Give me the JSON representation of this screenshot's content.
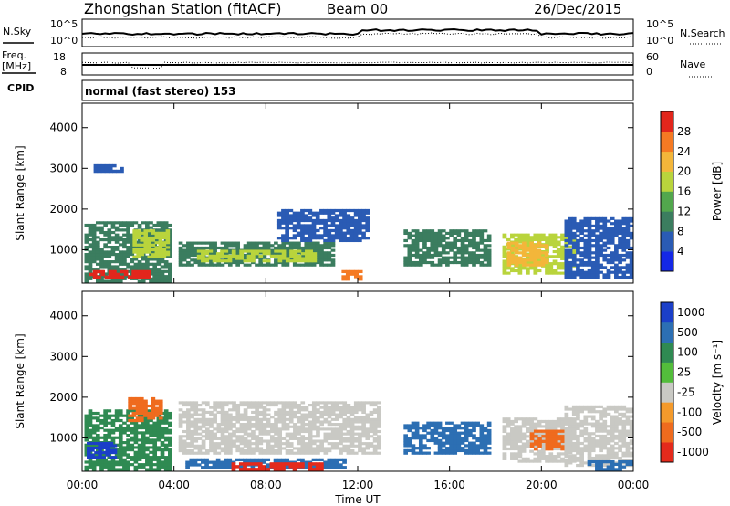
{
  "header": {
    "station": "Zhongshan Station (fitACF)",
    "beam": "Beam 00",
    "date": "26/Dec/2015"
  },
  "params": {
    "nsky_label": "N.Sky",
    "nsky_ticks": [
      "10^5",
      "10^0"
    ],
    "nsearch_label": "N.Search",
    "nsearch_ticks": [
      "10^5",
      "10^0"
    ],
    "freq_label": "Freq.",
    "freq_unit": "[MHz]",
    "freq_ticks": [
      "18",
      "8"
    ],
    "nave_label": "Nave",
    "nave_ticks": [
      "60",
      "0"
    ],
    "cpid_label": "CPID",
    "cpid_text": "normal (fast stereo) 153"
  },
  "chart_data": [
    {
      "type": "heatmap",
      "name": "power",
      "ylabel": "Slant Range [km]",
      "ylim": [
        180,
        4600
      ],
      "yticks": [
        1000,
        2000,
        3000,
        4000
      ],
      "xlim": [
        0,
        24
      ],
      "xticks": [
        0,
        4,
        8,
        12,
        16,
        20,
        24
      ],
      "colorbar": {
        "label": "Power [dB]",
        "levels": [
          0,
          4,
          8,
          12,
          16,
          20,
          24,
          28,
          32
        ],
        "ticks": [
          "4",
          "8",
          "12",
          "16",
          "20",
          "24",
          "28"
        ],
        "colors": [
          "#1428e6",
          "#2a5bb4",
          "#3b7d5f",
          "#52a74d",
          "#b9d43c",
          "#f3b63a",
          "#f57a23",
          "#e2261c"
        ]
      },
      "regions": [
        {
          "t0": 0.1,
          "t1": 3.9,
          "r0": 200,
          "r1": 1700,
          "level": 8
        },
        {
          "t0": 0.3,
          "t1": 3.0,
          "r0": 300,
          "r1": 500,
          "level": 28
        },
        {
          "t0": 2.2,
          "t1": 3.8,
          "r0": 800,
          "r1": 1500,
          "level": 18
        },
        {
          "t0": 4.2,
          "t1": 11.0,
          "r0": 600,
          "r1": 1200,
          "level": 10
        },
        {
          "t0": 5.0,
          "t1": 10.2,
          "r0": 700,
          "r1": 1000,
          "level": 16
        },
        {
          "t0": 8.5,
          "t1": 12.5,
          "r0": 1200,
          "r1": 2000,
          "level": 6
        },
        {
          "t0": 11.3,
          "t1": 12.2,
          "r0": 250,
          "r1": 500,
          "level": 26
        },
        {
          "t0": 14.0,
          "t1": 17.8,
          "r0": 600,
          "r1": 1500,
          "level": 9
        },
        {
          "t0": 18.3,
          "t1": 21.5,
          "r0": 400,
          "r1": 1400,
          "level": 18
        },
        {
          "t0": 18.5,
          "t1": 20.3,
          "r0": 600,
          "r1": 1200,
          "level": 22
        },
        {
          "t0": 21.0,
          "t1": 24.0,
          "r0": 300,
          "r1": 1800,
          "level": 7
        },
        {
          "t0": 0.5,
          "t1": 1.8,
          "r0": 2900,
          "r1": 3100,
          "level": 6
        }
      ]
    },
    {
      "type": "heatmap",
      "name": "velocity",
      "ylabel": "Slant Range [km]",
      "xlabel": "Time UT",
      "ylim": [
        180,
        4600
      ],
      "yticks": [
        1000,
        2000,
        3000,
        4000
      ],
      "xlim": [
        0,
        24
      ],
      "xticks": [
        0,
        4,
        8,
        12,
        16,
        20,
        24
      ],
      "xticklabels": [
        "00:00",
        "04:00",
        "08:00",
        "12:00",
        "16:00",
        "20:00",
        "00:00"
      ],
      "colorbar": {
        "label": "Velocity [m s⁻¹]",
        "ticks": [
          "1000",
          "500",
          "100",
          "25",
          "-25",
          "-100",
          "-500",
          "-1000"
        ],
        "colors": [
          "#1b3fc8",
          "#2c6fb3",
          "#2f8a52",
          "#53bd3b",
          "#c9c9c4",
          "#f49a2b",
          "#ef6b1e",
          "#e42a1c"
        ]
      },
      "regions": [
        {
          "t0": 0.1,
          "t1": 3.9,
          "r0": 200,
          "r1": 1700,
          "level": 25
        },
        {
          "t0": 0.2,
          "t1": 1.5,
          "r0": 500,
          "r1": 900,
          "level": 500
        },
        {
          "t0": 2.0,
          "t1": 3.5,
          "r0": 1400,
          "r1": 2000,
          "level": -100
        },
        {
          "t0": 4.2,
          "t1": 13.0,
          "r0": 600,
          "r1": 1900,
          "level": 0
        },
        {
          "t0": 4.5,
          "t1": 11.5,
          "r0": 250,
          "r1": 500,
          "level": 100
        },
        {
          "t0": 6.5,
          "t1": 10.5,
          "r0": 200,
          "r1": 400,
          "level": -500
        },
        {
          "t0": 14.0,
          "t1": 17.8,
          "r0": 600,
          "r1": 1400,
          "level": 100
        },
        {
          "t0": 18.3,
          "t1": 21.5,
          "r0": 400,
          "r1": 1500,
          "level": 0
        },
        {
          "t0": 19.5,
          "t1": 21.0,
          "r0": 700,
          "r1": 1200,
          "level": -100
        },
        {
          "t0": 21.0,
          "t1": 24.0,
          "r0": 300,
          "r1": 1800,
          "level": 0
        },
        {
          "t0": 22.0,
          "t1": 24.0,
          "r0": 200,
          "r1": 450,
          "level": 100
        }
      ]
    }
  ]
}
